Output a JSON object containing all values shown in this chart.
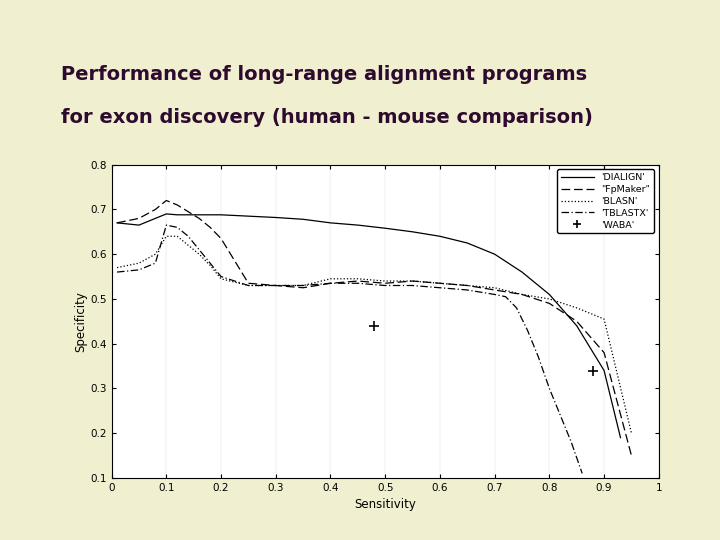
{
  "title_line1": "Performance of long-range alignment programs",
  "title_line2": "for exon discovery (human - mouse comparison)",
  "title_color": "#2d0a2e",
  "background_color": "#f0f0d0",
  "left_bar_color": "#c8c89a",
  "plot_bg_color": "#ffffff",
  "xlabel": "Sensitivity",
  "ylabel": "Specificity",
  "xlim": [
    0,
    1
  ],
  "ylim": [
    0.1,
    0.8
  ],
  "yticks": [
    0.1,
    0.2,
    0.3,
    0.4,
    0.5,
    0.6,
    0.7,
    0.8
  ],
  "xticks": [
    0,
    0.1,
    0.2,
    0.3,
    0.4,
    0.5,
    0.6,
    0.7,
    0.8,
    0.9,
    1
  ],
  "legend_labels": [
    "'DIALIGN'",
    "\"FpMaker\"",
    "'BLASN'",
    "'TBLASTX'",
    "'WABA'"
  ],
  "dialign_x": [
    0.01,
    0.05,
    0.08,
    0.1,
    0.12,
    0.15,
    0.18,
    0.2,
    0.25,
    0.3,
    0.35,
    0.4,
    0.45,
    0.5,
    0.55,
    0.6,
    0.65,
    0.7,
    0.75,
    0.8,
    0.85,
    0.9,
    0.93
  ],
  "dialign_y": [
    0.67,
    0.665,
    0.68,
    0.69,
    0.688,
    0.688,
    0.688,
    0.688,
    0.685,
    0.682,
    0.678,
    0.67,
    0.665,
    0.658,
    0.65,
    0.64,
    0.625,
    0.6,
    0.56,
    0.51,
    0.44,
    0.34,
    0.19
  ],
  "fpmaker_x": [
    0.01,
    0.05,
    0.08,
    0.1,
    0.12,
    0.14,
    0.16,
    0.18,
    0.2,
    0.25,
    0.3,
    0.35,
    0.4,
    0.45,
    0.5,
    0.55,
    0.6,
    0.65,
    0.7,
    0.75,
    0.8,
    0.85,
    0.9,
    0.95
  ],
  "fpmaker_y": [
    0.67,
    0.68,
    0.7,
    0.72,
    0.71,
    0.695,
    0.68,
    0.66,
    0.635,
    0.535,
    0.53,
    0.525,
    0.535,
    0.54,
    0.535,
    0.54,
    0.535,
    0.53,
    0.52,
    0.51,
    0.49,
    0.45,
    0.38,
    0.15
  ],
  "blasn_x": [
    0.01,
    0.05,
    0.08,
    0.1,
    0.12,
    0.14,
    0.16,
    0.18,
    0.2,
    0.25,
    0.3,
    0.35,
    0.4,
    0.45,
    0.5,
    0.55,
    0.6,
    0.65,
    0.7,
    0.75,
    0.8,
    0.85,
    0.9,
    0.95
  ],
  "blasn_y": [
    0.57,
    0.58,
    0.6,
    0.64,
    0.64,
    0.62,
    0.6,
    0.575,
    0.545,
    0.53,
    0.53,
    0.53,
    0.545,
    0.545,
    0.54,
    0.54,
    0.535,
    0.53,
    0.525,
    0.51,
    0.5,
    0.48,
    0.455,
    0.2
  ],
  "tblastx_x": [
    0.01,
    0.05,
    0.08,
    0.1,
    0.12,
    0.14,
    0.16,
    0.18,
    0.2,
    0.25,
    0.3,
    0.35,
    0.4,
    0.45,
    0.5,
    0.55,
    0.6,
    0.65,
    0.7,
    0.72,
    0.74,
    0.76,
    0.78,
    0.8,
    0.82,
    0.84,
    0.86
  ],
  "tblastx_y": [
    0.56,
    0.565,
    0.58,
    0.665,
    0.66,
    0.64,
    0.61,
    0.58,
    0.55,
    0.53,
    0.53,
    0.53,
    0.535,
    0.535,
    0.53,
    0.53,
    0.525,
    0.52,
    0.51,
    0.505,
    0.48,
    0.43,
    0.37,
    0.3,
    0.24,
    0.18,
    0.11
  ],
  "waba_points": [
    [
      0.48,
      0.44
    ],
    [
      0.88,
      0.34
    ]
  ],
  "sep_bar_color": "#2d0a2e",
  "accent_bar_color": "#b0b090"
}
